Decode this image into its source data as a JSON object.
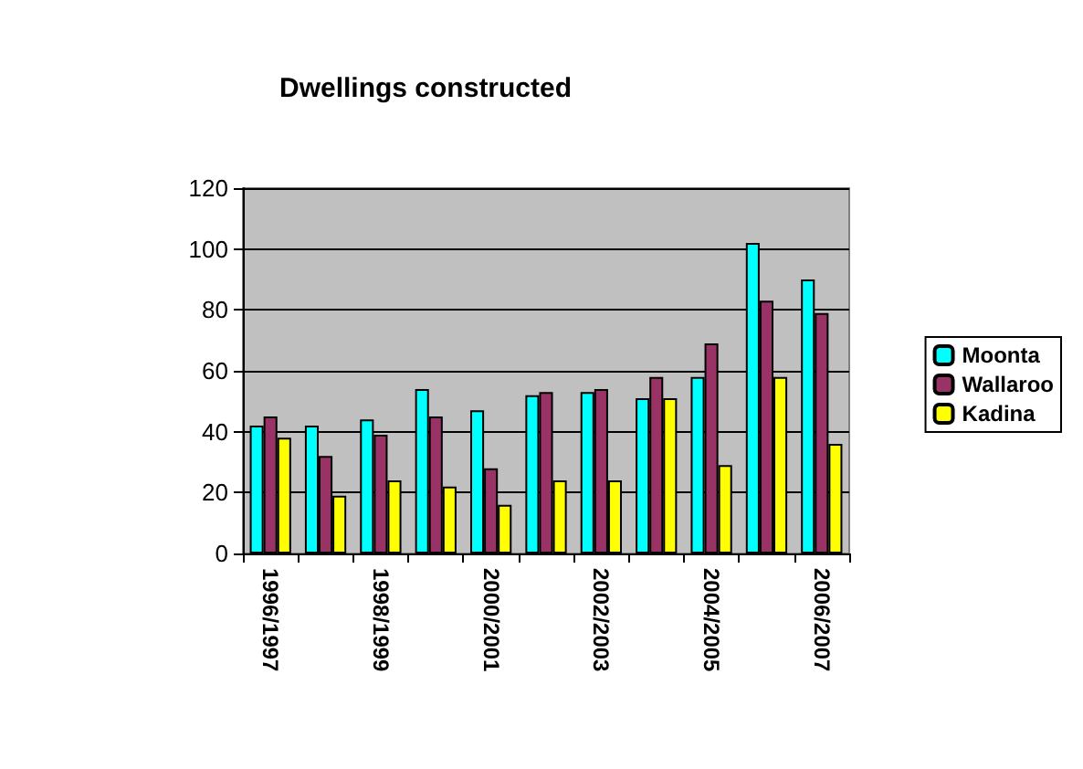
{
  "chart_data": {
    "type": "bar",
    "title": "Dwellings constructed",
    "categories": [
      "1996/1997",
      null,
      "1998/1999",
      null,
      "2000/2001",
      null,
      "2002/2003",
      null,
      "2004/2005",
      null,
      "2006/2007"
    ],
    "series": [
      {
        "name": "Moonta",
        "color": "#00ffff",
        "values": [
          42,
          42,
          44,
          54,
          47,
          52,
          53,
          51,
          58,
          102,
          90
        ]
      },
      {
        "name": "Wallaroo",
        "color": "#993366",
        "values": [
          45,
          32,
          39,
          45,
          28,
          53,
          54,
          58,
          69,
          83,
          79
        ]
      },
      {
        "name": "Kadina",
        "color": "#ffff00",
        "values": [
          38,
          19,
          24,
          22,
          16,
          24,
          24,
          51,
          29,
          58,
          36
        ]
      }
    ],
    "ylim": [
      0,
      120
    ],
    "yticks": [
      0,
      20,
      40,
      60,
      80,
      100,
      120
    ],
    "grid": "y",
    "legend": "right"
  }
}
